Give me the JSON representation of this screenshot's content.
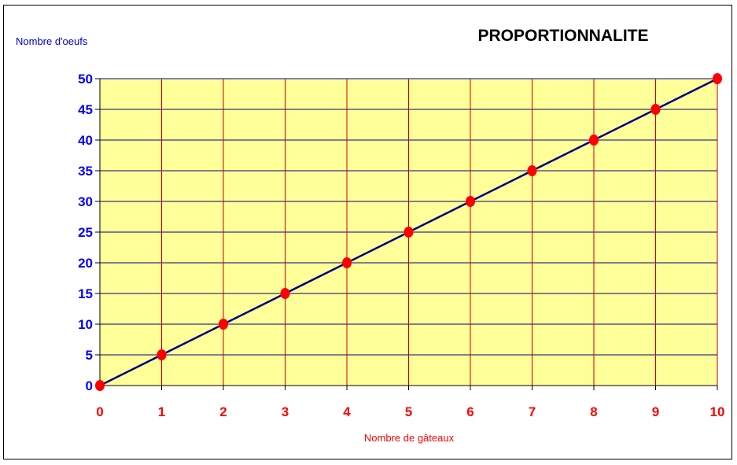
{
  "chart_data": {
    "type": "line",
    "title": "PROPORTIONNALITE",
    "xlabel": "Nombre de gâteaux",
    "ylabel": "Nombre d'oeufs",
    "x": [
      0,
      1,
      2,
      3,
      4,
      5,
      6,
      7,
      8,
      9,
      10
    ],
    "series": [
      {
        "values": [
          0,
          5,
          10,
          15,
          20,
          25,
          30,
          35,
          40,
          45,
          50
        ]
      }
    ],
    "xlim": [
      0,
      10
    ],
    "ylim": [
      0,
      50
    ],
    "x_ticks": [
      "0",
      "1",
      "2",
      "3",
      "4",
      "5",
      "6",
      "7",
      "8",
      "9",
      "10"
    ],
    "y_ticks": [
      "0",
      "5",
      "10",
      "15",
      "20",
      "25",
      "30",
      "35",
      "40",
      "45",
      "50"
    ],
    "grid": true,
    "colors": {
      "plot_background": "#ffff99",
      "vertical_grid": "#cc0000",
      "horizontal_grid": "#000080",
      "line": "#000080",
      "marker": "#ff0000",
      "x_tick_labels": "#ff0000",
      "y_tick_labels": "#0000ff",
      "xlabel": "#ff0000",
      "ylabel": "#0000cc",
      "title": "#000000"
    }
  }
}
